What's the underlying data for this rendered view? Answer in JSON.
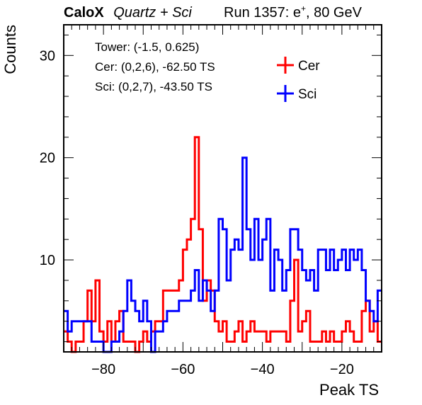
{
  "header": {
    "brand": "CaloX",
    "detector": "Quartz + Sci",
    "run_prefix": "Run 1357: e",
    "run_sup": "+",
    "run_suffix": ", 80 GeV"
  },
  "annotations": [
    "Tower: (-1.5, 0.625)",
    "Cer: (0,2,6), -62.50 TS",
    "Sci: (0,2,7), -43.50 TS"
  ],
  "chart_data": {
    "type": "histogram",
    "xlabel": "Peak TS",
    "ylabel": "Counts",
    "xlim": [
      -90,
      -10
    ],
    "ylim": [
      1,
      33
    ],
    "bin_width": 1,
    "x_ticks": [
      -80,
      -60,
      -40,
      -20
    ],
    "y_ticks": [
      10,
      20,
      30
    ],
    "legend_position": "top-right",
    "grid": false,
    "series": [
      {
        "name": "Cer",
        "color": "#ff0000",
        "bin_start": -90,
        "values": [
          3,
          2,
          1,
          2,
          2,
          4,
          7,
          4,
          8,
          3,
          2,
          4,
          2,
          4,
          5,
          2,
          2,
          2,
          1,
          2,
          3,
          2,
          3,
          4,
          4,
          7,
          7,
          7,
          7,
          8,
          11,
          12,
          14,
          22,
          13,
          6,
          8,
          7,
          4,
          3,
          4,
          2,
          2,
          3,
          4,
          2,
          3,
          4,
          3,
          3,
          3,
          2,
          3,
          3,
          3,
          3,
          2,
          6,
          10,
          3,
          4,
          5,
          2,
          2,
          2,
          3,
          2,
          3,
          2,
          2,
          3,
          4,
          3,
          2,
          2,
          5,
          6,
          3,
          4,
          2
        ]
      },
      {
        "name": "Sci",
        "color": "#0000ff",
        "bin_start": -90,
        "values": [
          5,
          3,
          4,
          4,
          4,
          4,
          4,
          2,
          2,
          2,
          1,
          1,
          2,
          2,
          3,
          5,
          8,
          6,
          5,
          4,
          6,
          4,
          1,
          3,
          3,
          4,
          5,
          5,
          5,
          6,
          6,
          6,
          7,
          9,
          6,
          8,
          7,
          5,
          7,
          14,
          13,
          8,
          11,
          12,
          11,
          20,
          13,
          10,
          14,
          10,
          12,
          14,
          7,
          11,
          10,
          7,
          9,
          13,
          13,
          11,
          9,
          8,
          9,
          7,
          11,
          11,
          9,
          11,
          9,
          10,
          11,
          9,
          11,
          10,
          11,
          9,
          6,
          5,
          4,
          7
        ]
      }
    ]
  }
}
